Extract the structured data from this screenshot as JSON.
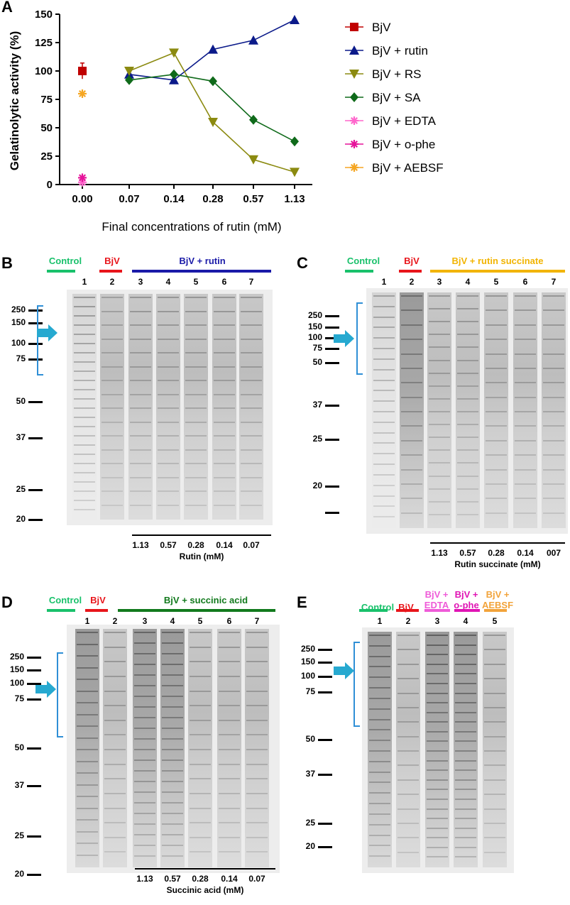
{
  "chart_data": {
    "type": "line",
    "panel": "A",
    "ylabel": "Gelatinolytic activity (%)",
    "xlabel": "Final concentrations of rutin (mM)",
    "categories": [
      "0.00",
      "0.07",
      "0.14",
      "0.28",
      "0.57",
      "1.13"
    ],
    "ylim": [
      0,
      150
    ],
    "yticks": [
      "0",
      "25",
      "50",
      "75",
      "100",
      "125",
      "150"
    ],
    "legend_position": "right",
    "series": [
      {
        "name": "BjV",
        "color": "#c00000",
        "marker": "square",
        "points": [
          {
            "cat": 0,
            "y": 100,
            "err": 7
          }
        ]
      },
      {
        "name": "BjV + rutin",
        "color": "#0b1a8a",
        "marker": "triangle-up",
        "points": [
          {
            "cat": 1,
            "y": 97
          },
          {
            "cat": 2,
            "y": 92
          },
          {
            "cat": 3,
            "y": 119
          },
          {
            "cat": 4,
            "y": 127
          },
          {
            "cat": 5,
            "y": 145
          }
        ]
      },
      {
        "name": "BjV + RS",
        "color": "#8b8a10",
        "marker": "triangle-down",
        "points": [
          {
            "cat": 1,
            "y": 100
          },
          {
            "cat": 2,
            "y": 116
          },
          {
            "cat": 3,
            "y": 55
          },
          {
            "cat": 4,
            "y": 22
          },
          {
            "cat": 5,
            "y": 11
          }
        ]
      },
      {
        "name": "BjV + SA",
        "color": "#0f6a1a",
        "marker": "diamond",
        "points": [
          {
            "cat": 1,
            "y": 92
          },
          {
            "cat": 2,
            "y": 97
          },
          {
            "cat": 3,
            "y": 91
          },
          {
            "cat": 4,
            "y": 57
          },
          {
            "cat": 5,
            "y": 38
          }
        ]
      },
      {
        "name": "BjV + EDTA",
        "color": "#ff66cc",
        "marker": "asterisk",
        "points": [
          {
            "cat": 0,
            "y": 2
          }
        ]
      },
      {
        "name": "BjV + o-phe",
        "color": "#e6149a",
        "marker": "asterisk",
        "points": [
          {
            "cat": 0,
            "y": 6
          }
        ]
      },
      {
        "name": "BjV + AEBSF",
        "color": "#f5a623",
        "marker": "asterisk",
        "points": [
          {
            "cat": 0,
            "y": 80
          }
        ]
      }
    ]
  },
  "panels": {
    "A": "A",
    "B": "B",
    "C": "C",
    "D": "D",
    "E": "E"
  },
  "common": {
    "control": "Control",
    "bjv": "BjV",
    "mw_markers": [
      "250",
      "150",
      "100",
      "75",
      "50",
      "37",
      "25",
      "20"
    ],
    "lanes7": [
      "1",
      "2",
      "3",
      "4",
      "5",
      "6",
      "7"
    ],
    "lanes5": [
      "1",
      "2",
      "3",
      "4",
      "5"
    ]
  },
  "gelB": {
    "group": "BjV + rutin",
    "concs": [
      "1.13",
      "0.57",
      "0.28",
      "0.14",
      "0.07"
    ],
    "caption": "Rutin (mM)"
  },
  "gelC": {
    "group": "BjV + rutin succinate",
    "concs": [
      "1.13",
      "0.57",
      "0.28",
      "0.14",
      "007"
    ],
    "caption": "Rutin succinate (mM)"
  },
  "gelD": {
    "group": "BjV + succinic acid",
    "concs": [
      "1.13",
      "0.57",
      "0.28",
      "0.14",
      "0.07"
    ],
    "caption": "Succinic acid (mM)"
  },
  "gelE": {
    "edta_l1": "BjV +",
    "edta_l2": "EDTA",
    "ophe_l1": "BjV +",
    "ophe_l2": "o-phe",
    "aebsf_l1": "BjV +",
    "aebsf_l2": "AEBSF"
  },
  "colors": {
    "control": "#19c16b",
    "bjv": "#e8151b",
    "rutin": "#1a1aa8",
    "rs": "#f2b400",
    "sa": "#127a1d",
    "edta": "#ef5bd8",
    "ophe": "#e014b4",
    "aebsf": "#f2a33a",
    "arrow": "#26a9d0",
    "bracket": "#2f8fd6"
  }
}
